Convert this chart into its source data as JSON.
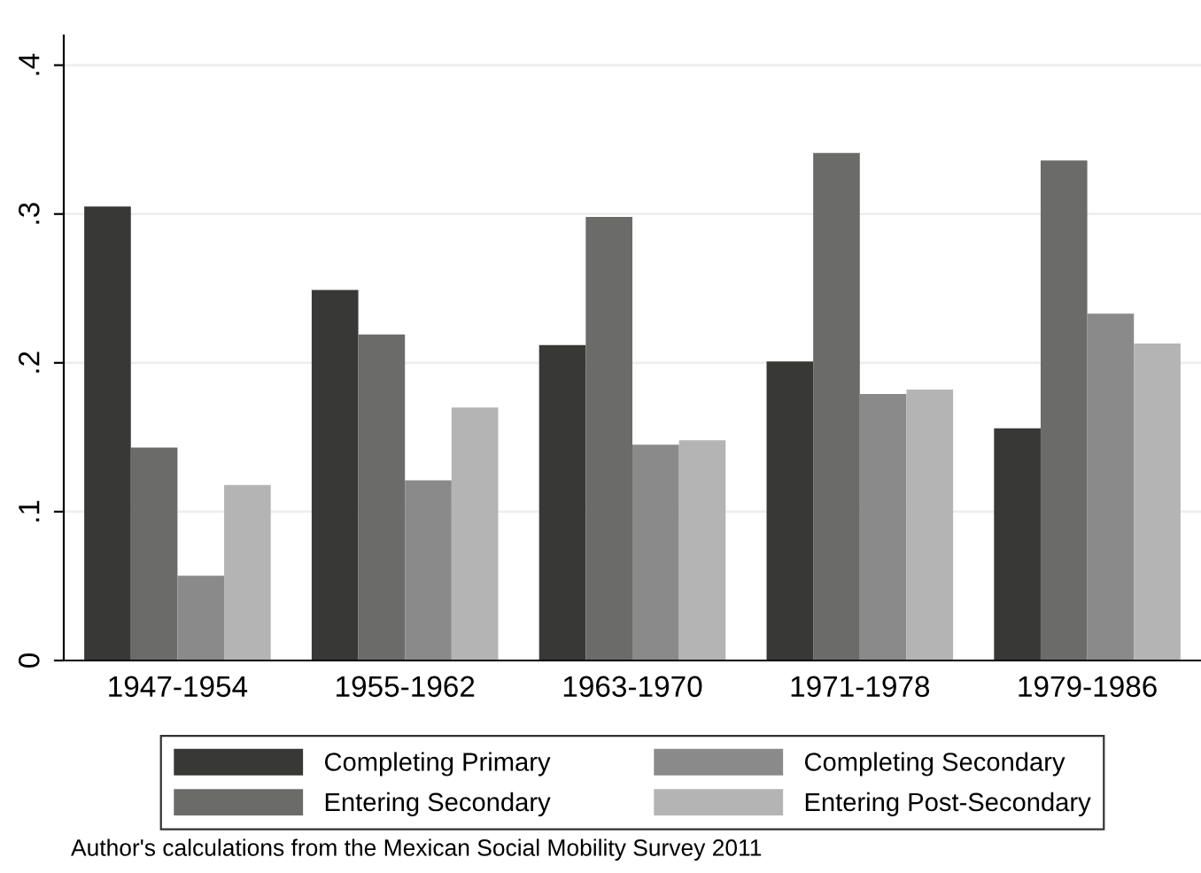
{
  "chart_data": {
    "type": "bar",
    "categories": [
      "1947-1954",
      "1955-1962",
      "1963-1970",
      "1971-1978",
      "1979-1986"
    ],
    "series": [
      {
        "name": "Completing Primary",
        "color": "#383836",
        "values": [
          0.305,
          0.249,
          0.212,
          0.201,
          0.156
        ]
      },
      {
        "name": "Entering Secondary",
        "color": "#6b6b69",
        "values": [
          0.143,
          0.219,
          0.298,
          0.341,
          0.336
        ]
      },
      {
        "name": "Completing Secondary",
        "color": "#8a8a8a",
        "values": [
          0.057,
          0.121,
          0.145,
          0.179,
          0.233
        ]
      },
      {
        "name": "Entering Post-Secondary",
        "color": "#b4b4b4",
        "values": [
          0.118,
          0.17,
          0.148,
          0.182,
          0.213
        ]
      }
    ],
    "ylim": [
      0,
      0.42
    ],
    "yticks": [
      {
        "value": 0,
        "label": "0"
      },
      {
        "value": 0.1,
        "label": ".1"
      },
      {
        "value": 0.2,
        "label": ".2"
      },
      {
        "value": 0.3,
        "label": ".3"
      },
      {
        "value": 0.4,
        "label": ".4"
      }
    ],
    "grid": "y",
    "legend": "bottom",
    "annotations": [
      "Author's calculations from the Mexican Social Mobility Survey 2011"
    ]
  }
}
